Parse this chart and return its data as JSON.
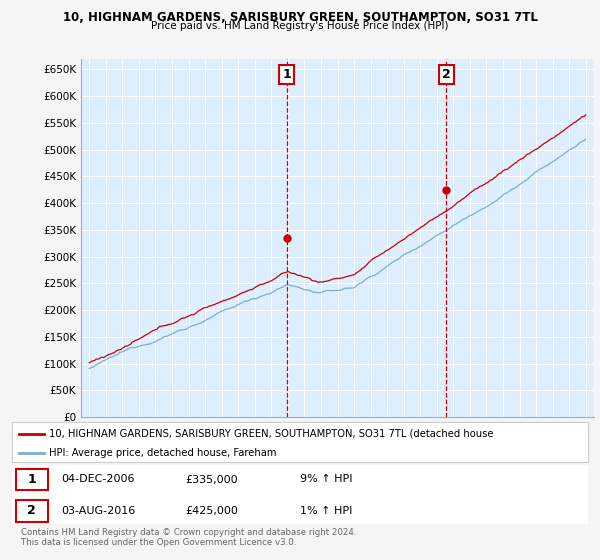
{
  "title1": "10, HIGHNAM GARDENS, SARISBURY GREEN, SOUTHAMPTON, SO31 7TL",
  "title2": "Price paid vs. HM Land Registry's House Price Index (HPI)",
  "legend_red": "10, HIGHNAM GARDENS, SARISBURY GREEN, SOUTHAMPTON, SO31 7TL (detached house",
  "legend_blue": "HPI: Average price, detached house, Fareham",
  "annotation1_date": "04-DEC-2006",
  "annotation1_price": "£335,000",
  "annotation1_hpi": "9% ↑ HPI",
  "annotation2_date": "03-AUG-2016",
  "annotation2_price": "£425,000",
  "annotation2_hpi": "1% ↑ HPI",
  "footnote1": "Contains HM Land Registry data © Crown copyright and database right 2024.",
  "footnote2": "This data is licensed under the Open Government Licence v3.0.",
  "red_color": "#cc0000",
  "blue_color": "#7bafd4",
  "plot_bg_color": "#ddeeff",
  "grid_color": "#ffffff",
  "fig_bg_color": "#f5f5f5",
  "yticks": [
    0,
    50000,
    100000,
    150000,
    200000,
    250000,
    300000,
    350000,
    400000,
    450000,
    500000,
    550000,
    600000,
    650000
  ],
  "ytick_labels": [
    "£0",
    "£50K",
    "£100K",
    "£150K",
    "£200K",
    "£250K",
    "£300K",
    "£350K",
    "£400K",
    "£450K",
    "£500K",
    "£550K",
    "£600K",
    "£650K"
  ],
  "ymin": 0,
  "ymax": 670000,
  "sale1_x": 2006.92,
  "sale1_y": 335000,
  "sale2_x": 2016.58,
  "sale2_y": 425000,
  "xmin": 1994.5,
  "xmax": 2025.5
}
